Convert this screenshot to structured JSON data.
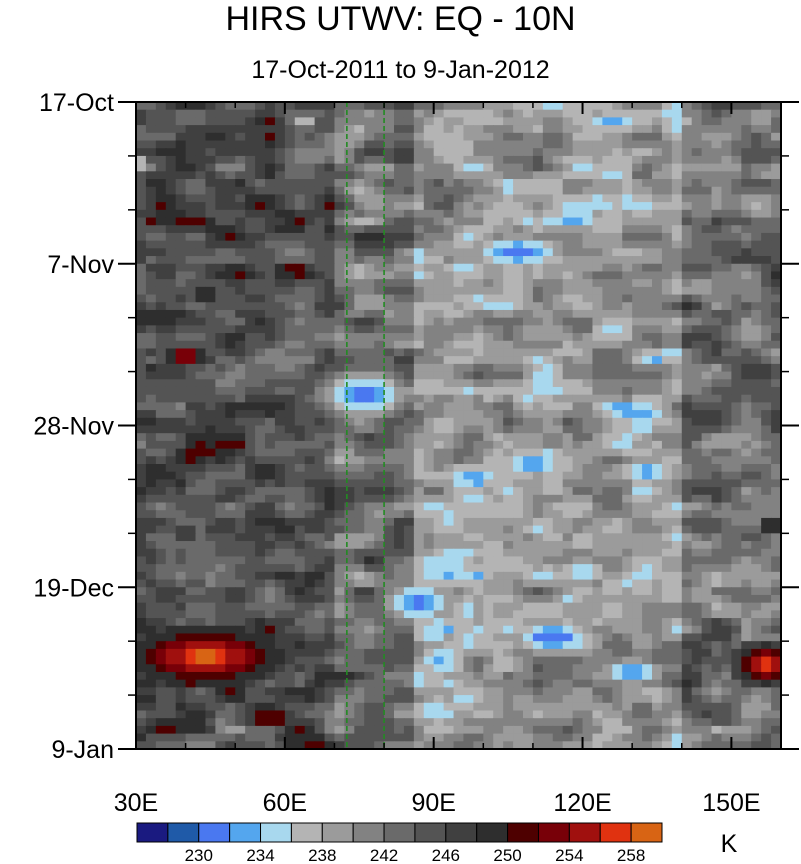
{
  "chart_data": {
    "type": "heatmap",
    "title": "HIRS UTWV: EQ - 10N",
    "subtitle": "17-Oct-2011 to 9-Jan-2012",
    "x_axis": {
      "range": [
        30,
        160
      ],
      "ticks": [
        {
          "value": 30,
          "label": "30E"
        },
        {
          "value": 60,
          "label": "60E"
        },
        {
          "value": 90,
          "label": "90E"
        },
        {
          "value": 120,
          "label": "120E"
        },
        {
          "value": 150,
          "label": "150E"
        }
      ]
    },
    "y_axis": {
      "range_days": [
        0,
        84
      ],
      "direction": "time increases downward",
      "ticks": [
        {
          "value": 0,
          "label": "17-Oct"
        },
        {
          "value": 21,
          "label": "7-Nov"
        },
        {
          "value": 42,
          "label": "28-Nov"
        },
        {
          "value": 63,
          "label": "19-Dec"
        },
        {
          "value": 84,
          "label": "9-Jan"
        }
      ]
    },
    "reference_lines": [
      {
        "orientation": "vertical",
        "x": 72.5,
        "style": "dashed",
        "color": "#228b22"
      },
      {
        "orientation": "vertical",
        "x": 80,
        "style": "dashed",
        "color": "#228b22"
      }
    ],
    "colorbar": {
      "unit": "K",
      "colors": [
        "#1a1a80",
        "#1f5aa8",
        "#4a78f0",
        "#54a6ee",
        "#a8d8ee",
        "#b4b4b4",
        "#9b9b9b",
        "#828282",
        "#6a6a6a",
        "#545454",
        "#404040",
        "#2e2e2e",
        "#4e0000",
        "#780008",
        "#a0100e",
        "#e03210",
        "#d86414"
      ],
      "labels": [
        "230",
        "234",
        "238",
        "242",
        "246",
        "250",
        "254",
        "258"
      ]
    },
    "cold_regions": [
      {
        "lon": 64,
        "day": 2.5,
        "dlon": 3,
        "dday": 1.5,
        "min_K": 236
      },
      {
        "lon": 31,
        "day": 8,
        "dlon": 1.5,
        "dday": 1.5,
        "min_K": 236
      },
      {
        "lon": 75,
        "day": 11.5,
        "dlon": 4,
        "dday": 2,
        "min_K": 236
      },
      {
        "lon": 94,
        "day": 6,
        "dlon": 10,
        "dday": 5,
        "min_K": 236
      },
      {
        "lon": 107,
        "day": 19.5,
        "dlon": 11,
        "dday": 2.5,
        "min_K": 231
      },
      {
        "lon": 76,
        "day": 38,
        "dlon": 9,
        "dday": 3,
        "min_K": 230
      },
      {
        "lon": 110,
        "day": 47,
        "dlon": 10,
        "dday": 2.5,
        "min_K": 233
      },
      {
        "lon": 133,
        "day": 48,
        "dlon": 10,
        "dday": 2.5,
        "min_K": 233
      },
      {
        "lon": 87,
        "day": 65,
        "dlon": 8,
        "dday": 3,
        "min_K": 231
      },
      {
        "lon": 114,
        "day": 69.5,
        "dlon": 9,
        "dday": 2.5,
        "min_K": 230
      },
      {
        "lon": 130,
        "day": 74,
        "dlon": 7,
        "dday": 2,
        "min_K": 231
      },
      {
        "lon": 120,
        "day": 61,
        "dlon": 8,
        "dday": 3,
        "min_K": 235
      },
      {
        "lon": 94,
        "day": 58,
        "dlon": 14,
        "dday": 8,
        "min_K": 238
      },
      {
        "lon": 112,
        "day": 30,
        "dlon": 14,
        "dday": 6,
        "min_K": 239
      },
      {
        "lon": 88,
        "day": 46,
        "dlon": 12,
        "dday": 9,
        "min_K": 239
      },
      {
        "lon": 100,
        "day": 78,
        "dlon": 10,
        "dday": 6,
        "min_K": 238
      }
    ],
    "warm_regions": [
      {
        "lon": 44,
        "day": 72,
        "dlon": 10,
        "dday": 2.5,
        "max_K": 259
      },
      {
        "lon": 157,
        "day": 73,
        "dlon": 4,
        "dday": 2,
        "max_K": 258
      },
      {
        "lon": 40,
        "day": 33,
        "dlon": 4,
        "dday": 1.2,
        "max_K": 255
      },
      {
        "lon": 44,
        "day": 25,
        "dlon": 3,
        "dday": 0.7,
        "max_K": 254
      },
      {
        "lon": 40,
        "day": 56,
        "dlon": 1.5,
        "dday": 1,
        "max_K": 254
      },
      {
        "lon": 57,
        "day": 80,
        "dlon": 6,
        "dday": 1,
        "max_K": 254
      },
      {
        "lon": 158,
        "day": 55,
        "dlon": 2,
        "dday": 1,
        "max_K": 253
      }
    ]
  }
}
